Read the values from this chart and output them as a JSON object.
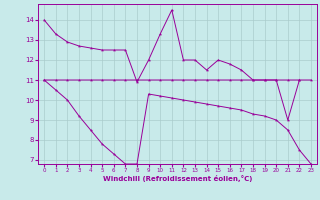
{
  "xlabel": "Windchill (Refroidissement éolien,°C)",
  "bg_color": "#c8eaea",
  "line_color": "#990099",
  "grid_color": "#aacccc",
  "series1_x": [
    0,
    1,
    2,
    3,
    4,
    5,
    6,
    7,
    8,
    9,
    10,
    11,
    12,
    13,
    14,
    15,
    16,
    17,
    18,
    19,
    20,
    21,
    22,
    23
  ],
  "series1_y": [
    14.0,
    13.3,
    12.9,
    12.7,
    12.6,
    12.5,
    12.5,
    12.5,
    10.9,
    12.0,
    13.3,
    14.5,
    12.0,
    12.0,
    11.5,
    12.0,
    11.8,
    11.5,
    11.0,
    11.0,
    11.0,
    11.0,
    11.0,
    11.0
  ],
  "series2_x": [
    0,
    1,
    2,
    3,
    4,
    5,
    6,
    7,
    8,
    9,
    10,
    11,
    12,
    13,
    14,
    15,
    16,
    17,
    18,
    19,
    20,
    21,
    22,
    23
  ],
  "series2_y": [
    11.0,
    11.0,
    11.0,
    11.0,
    11.0,
    11.0,
    11.0,
    11.0,
    11.0,
    11.0,
    11.0,
    11.0,
    11.0,
    11.0,
    11.0,
    11.0,
    11.0,
    11.0,
    11.0,
    11.0,
    11.0,
    9.0,
    11.0,
    null
  ],
  "series3_x": [
    0,
    1,
    2,
    3,
    4,
    5,
    6,
    7,
    8,
    9,
    10,
    11,
    12,
    13,
    14,
    15,
    16,
    17,
    18,
    19,
    20,
    21,
    22,
    23
  ],
  "series3_y": [
    11.0,
    10.5,
    10.0,
    9.2,
    8.5,
    7.8,
    7.3,
    6.8,
    6.8,
    10.3,
    10.2,
    10.1,
    10.0,
    9.9,
    9.8,
    9.7,
    9.6,
    9.5,
    9.3,
    9.2,
    9.0,
    8.5,
    7.5,
    6.8
  ],
  "ylim": [
    6.8,
    14.8
  ],
  "xlim": [
    -0.5,
    23.5
  ],
  "yticks": [
    7,
    8,
    9,
    10,
    11,
    12,
    13,
    14
  ],
  "xticks": [
    0,
    1,
    2,
    3,
    4,
    5,
    6,
    7,
    8,
    9,
    10,
    11,
    12,
    13,
    14,
    15,
    16,
    17,
    18,
    19,
    20,
    21,
    22,
    23
  ]
}
